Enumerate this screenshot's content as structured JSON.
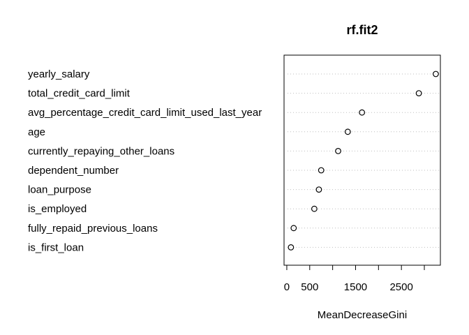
{
  "chart_data": {
    "type": "scatter",
    "subtype": "dotchart",
    "title": "rf.fit2",
    "xlabel": "MeanDecreaseGini",
    "ylabel": "",
    "xlim": [
      -60,
      3350
    ],
    "x_ticks": [
      0,
      500,
      1000,
      1500,
      2000,
      2500,
      3000
    ],
    "x_tick_labels": [
      "0",
      "500",
      "",
      "1500",
      "",
      "2500",
      ""
    ],
    "grid": "dotted horizontal guide lines",
    "legend": "none",
    "marker": "open circle",
    "categories": [
      "yearly_salary",
      "total_credit_card_limit",
      "avg_percentage_credit_card_limit_used_last_year",
      "age",
      "currently_repaying_other_loans",
      "dependent_number",
      "loan_purpose",
      "is_employed",
      "fully_repaid_previous_loans",
      "is_first_loan"
    ],
    "values": [
      3250,
      2880,
      1640,
      1330,
      1120,
      750,
      700,
      600,
      150,
      90
    ]
  },
  "colors": {
    "background": "#ffffff",
    "axis": "#000000",
    "guide": "#bebebe",
    "marker": "#000000"
  }
}
